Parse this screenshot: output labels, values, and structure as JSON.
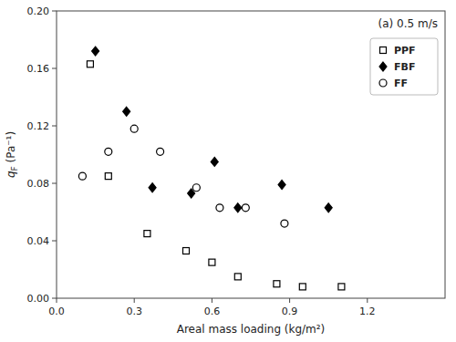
{
  "chart_data": {
    "type": "scatter",
    "annotation": "(a) 0.5 m/s",
    "x_label": "Areal mass loading (kg/m²)",
    "y_label": "qF (Pa⁻¹)",
    "xlim": [
      0.0,
      1.5
    ],
    "ylim": [
      0.0,
      0.2
    ],
    "xticks": [
      {
        "value": 0.0,
        "label": "0.0"
      },
      0.3,
      0.6,
      0.9,
      1.2
    ],
    "yticks": [
      {
        "value": 0.0,
        "label": "0.00"
      },
      0.04,
      0.08,
      0.12,
      0.16,
      {
        "value": 0.2,
        "label": "0.20"
      }
    ],
    "grid": false,
    "legend": "upper right",
    "series": [
      {
        "name": "PPF",
        "color": "black",
        "marker": "open-square",
        "x": [
          0.13,
          0.2,
          0.35,
          0.5,
          0.6,
          0.7,
          0.85,
          0.95,
          1.1
        ],
        "values": [
          0.163,
          0.085,
          0.045,
          0.033,
          0.025,
          0.015,
          0.01,
          0.008,
          0.008
        ]
      },
      {
        "name": "FBF",
        "color": "black",
        "marker": "filled-diamond",
        "x": [
          0.15,
          0.27,
          0.37,
          0.52,
          0.61,
          0.7,
          0.87,
          1.05
        ],
        "values": [
          0.172,
          0.13,
          0.077,
          0.073,
          0.095,
          0.063,
          0.079,
          0.063
        ]
      },
      {
        "name": "FF",
        "color": "black",
        "marker": "open-circle",
        "x": [
          0.1,
          0.2,
          0.3,
          0.4,
          0.54,
          0.63,
          0.73,
          0.88
        ],
        "values": [
          0.085,
          0.102,
          0.118,
          0.102,
          0.077,
          0.063,
          0.063,
          0.052
        ]
      }
    ]
  }
}
